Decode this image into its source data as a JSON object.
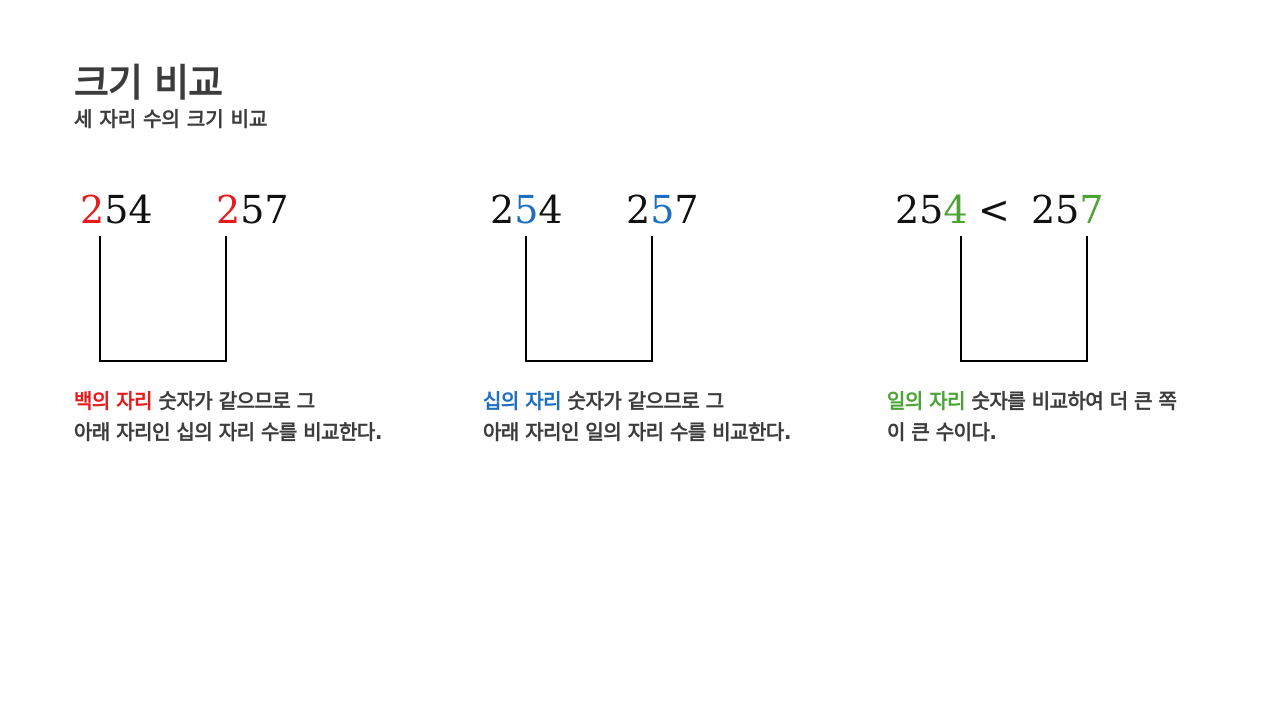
{
  "header": {
    "title": "크기 비교",
    "subtitle": "세 자리 수의 크기 비교"
  },
  "colors": {
    "red": "#e51c1c",
    "blue": "#1e6fbf",
    "green": "#4ca336",
    "text": "#3c3c3c"
  },
  "panels": [
    {
      "left_number": {
        "highlight": "2",
        "rest": "54"
      },
      "right_number": {
        "highlight": "2",
        "rest": "57"
      },
      "desc_highlight": "백의 자리",
      "desc_line1_rest": " 숫자가 같으므로 그",
      "desc_line2": "아래 자리인 십의 자리 수를 비교한다."
    },
    {
      "left_number": {
        "before": "2",
        "highlight": "5",
        "after": "4"
      },
      "right_number": {
        "before": "2",
        "highlight": "5",
        "after": "7"
      },
      "desc_highlight": "십의 자리",
      "desc_line1_rest": " 숫자가 같으므로 그",
      "desc_line2": "아래 자리인 일의 자리 수를 비교한다."
    },
    {
      "left_number": {
        "before": "25",
        "highlight": "4"
      },
      "comparator": "<",
      "right_number": {
        "before": "25",
        "highlight": "7"
      },
      "desc_highlight": "일의 자리",
      "desc_line1_rest": " 숫자를 비교하여 더 큰 쪽",
      "desc_line2": "이 큰 수이다."
    }
  ]
}
